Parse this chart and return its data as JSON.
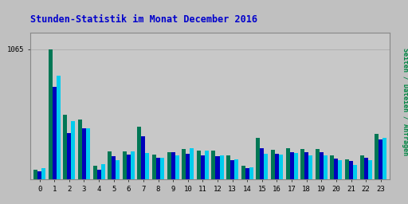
{
  "title": "Stunden-Statistik im Monat December 2016",
  "ylabel_right": "Seiten / Dateien / Anfragen",
  "categories": [
    0,
    1,
    2,
    3,
    4,
    5,
    6,
    7,
    8,
    9,
    10,
    11,
    12,
    13,
    14,
    15,
    16,
    17,
    18,
    19,
    20,
    21,
    22,
    23
  ],
  "seiten": [
    80,
    1065,
    530,
    490,
    115,
    230,
    230,
    430,
    205,
    220,
    250,
    235,
    235,
    195,
    115,
    340,
    245,
    255,
    250,
    250,
    200,
    165,
    200,
    370
  ],
  "dateien": [
    70,
    760,
    380,
    420,
    80,
    190,
    205,
    355,
    175,
    225,
    210,
    200,
    190,
    160,
    90,
    255,
    210,
    225,
    225,
    220,
    170,
    150,
    175,
    330
  ],
  "anfragen": [
    90,
    850,
    475,
    420,
    125,
    155,
    230,
    215,
    175,
    195,
    255,
    235,
    200,
    165,
    100,
    210,
    205,
    215,
    200,
    200,
    160,
    120,
    155,
    340
  ],
  "color_seiten": "#007755",
  "color_dateien": "#0000bb",
  "color_anfragen": "#00ccee",
  "background_plot": "#c8c8c8",
  "background_fig": "#c0c0c0",
  "title_color": "#0000cc",
  "ylabel_right_color": "#008844",
  "grid_color": "#b0b0b0",
  "bar_width": 0.27,
  "ylim": [
    0,
    1200
  ],
  "ytick_val": 1065,
  "border_color": "#888888"
}
